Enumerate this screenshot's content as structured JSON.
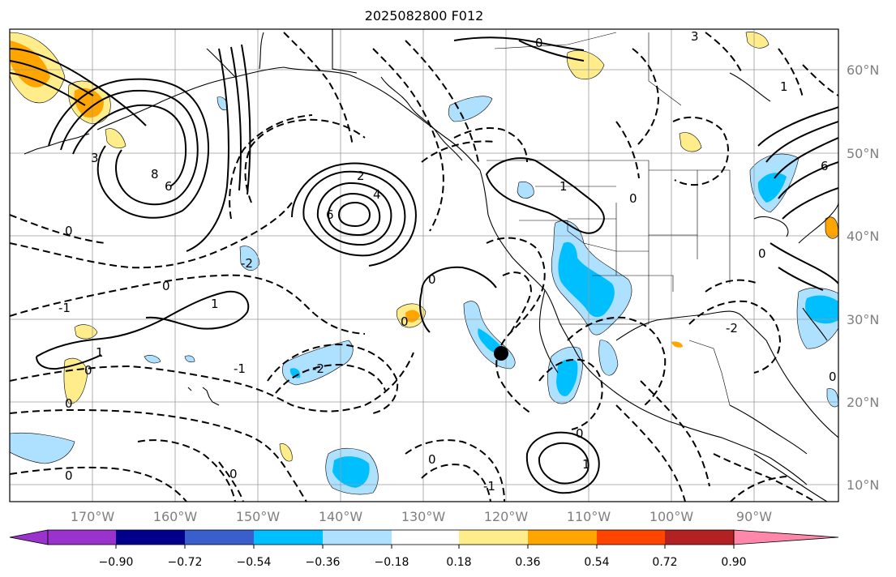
{
  "title": "2025082800 F012",
  "lat_labels": [
    "60°N",
    "50°N",
    "40°N",
    "30°N",
    "20°N",
    "10°N"
  ],
  "lon_labels": [
    "170°W",
    "160°W",
    "150°W",
    "140°W",
    "130°W",
    "120°W",
    "110°W",
    "100°W",
    "90°W"
  ],
  "colorbar": {
    "tick_labels": [
      "−0.90",
      "−0.72",
      "−0.54",
      "−0.36",
      "−0.18",
      "0.18",
      "0.36",
      "0.54",
      "0.72",
      "0.90"
    ],
    "colors": [
      "#9933cc",
      "#00008b",
      "#3a5fcd",
      "#00bfff",
      "#aee0ff",
      "#ffffff",
      "#ffec8b",
      "#ffa500",
      "#ff4500",
      "#b22222",
      "#ff88aa"
    ]
  },
  "contour_labels": [
    "0",
    "-1",
    "-2",
    "1",
    "2",
    "4",
    "6",
    "8",
    "3"
  ],
  "marker": {
    "name": "black-dot"
  }
}
